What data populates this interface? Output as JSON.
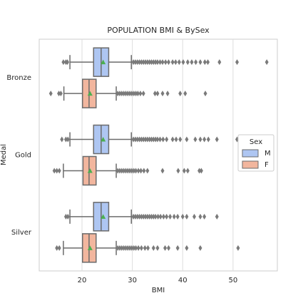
{
  "chart_data": {
    "type": "boxplot",
    "orientation": "horizontal",
    "title": "POPULATION BMI & BySex",
    "xlabel": "BMI",
    "ylabel": "Medal",
    "categories": [
      "Bronze",
      "Gold",
      "Silver"
    ],
    "xlim": [
      11.5,
      58.8
    ],
    "xticks": [
      20,
      30,
      40,
      50
    ],
    "grid": true,
    "legend_title": "Sex",
    "legend_position": "right",
    "series": [
      {
        "name": "M",
        "color": "#aec6f2",
        "boxes": [
          {
            "min": 17.6,
            "q1": 22.3,
            "median": 23.8,
            "q3": 25.3,
            "max": 29.8,
            "mean": 24.2,
            "outliers": [
              16.3,
              16.8,
              17.1,
              30.2,
              30.6,
              31.0,
              31.4,
              31.8,
              32.2,
              32.6,
              33.0,
              33.4,
              33.8,
              34.2,
              34.6,
              35.0,
              35.5,
              36.0,
              36.6,
              37.2,
              38.0,
              38.6,
              39.3,
              40.1,
              41.0,
              41.8,
              42.6,
              43.5,
              44.4,
              45.0,
              47.3,
              50.8,
              56.7
            ]
          },
          {
            "min": 17.6,
            "q1": 22.3,
            "median": 23.8,
            "q3": 25.3,
            "max": 29.8,
            "mean": 24.2,
            "outliers": [
              16.0,
              16.8,
              17.2,
              30.2,
              30.6,
              31.0,
              31.4,
              31.8,
              32.2,
              32.6,
              33.0,
              33.4,
              33.8,
              34.2,
              34.6,
              35.0,
              35.5,
              36.1,
              36.8,
              38.0,
              38.7,
              39.5,
              40.8,
              42.5,
              43.5,
              44.3,
              45.1,
              46.8,
              50.8
            ]
          },
          {
            "min": 17.6,
            "q1": 22.3,
            "median": 23.8,
            "q3": 25.3,
            "max": 29.8,
            "mean": 24.2,
            "outliers": [
              16.8,
              17.2,
              30.2,
              30.6,
              31.0,
              31.4,
              31.8,
              32.2,
              32.6,
              33.0,
              33.4,
              33.8,
              34.2,
              34.6,
              35.1,
              35.6,
              36.2,
              36.8,
              37.5,
              38.3,
              39.0,
              40.0,
              40.8,
              42.3,
              43.5,
              44.3,
              46.8
            ]
          }
        ]
      },
      {
        "name": "F",
        "color": "#f2b69e",
        "boxes": [
          {
            "min": 16.4,
            "q1": 20.1,
            "median": 21.4,
            "q3": 22.8,
            "max": 26.8,
            "mean": 21.6,
            "outliers": [
              13.8,
              15.4,
              15.8,
              27.1,
              27.5,
              27.9,
              28.3,
              28.7,
              29.1,
              29.5,
              29.9,
              30.3,
              30.7,
              31.1,
              31.6,
              32.2,
              34.5,
              35.0,
              36.0,
              37.0,
              39.5,
              40.5,
              44.5
            ]
          },
          {
            "min": 16.3,
            "q1": 20.2,
            "median": 21.4,
            "q3": 22.8,
            "max": 26.8,
            "mean": 21.6,
            "outliers": [
              14.5,
              15.0,
              15.5,
              27.1,
              27.5,
              27.9,
              28.3,
              28.7,
              29.1,
              29.5,
              29.9,
              30.3,
              30.7,
              31.2,
              31.7,
              32.3,
              33.0,
              36.0,
              39.1,
              40.3,
              41.0,
              43.3,
              43.7
            ]
          },
          {
            "min": 16.3,
            "q1": 20.1,
            "median": 21.4,
            "q3": 22.8,
            "max": 26.8,
            "mean": 21.6,
            "outliers": [
              15.0,
              15.5,
              27.1,
              27.5,
              27.9,
              28.3,
              28.7,
              29.1,
              29.5,
              29.9,
              30.3,
              30.7,
              31.2,
              31.8,
              32.5,
              33.1,
              34.2,
              35.0,
              36.5,
              37.2,
              39.0,
              40.8,
              43.5,
              51.0
            ]
          }
        ]
      }
    ]
  }
}
